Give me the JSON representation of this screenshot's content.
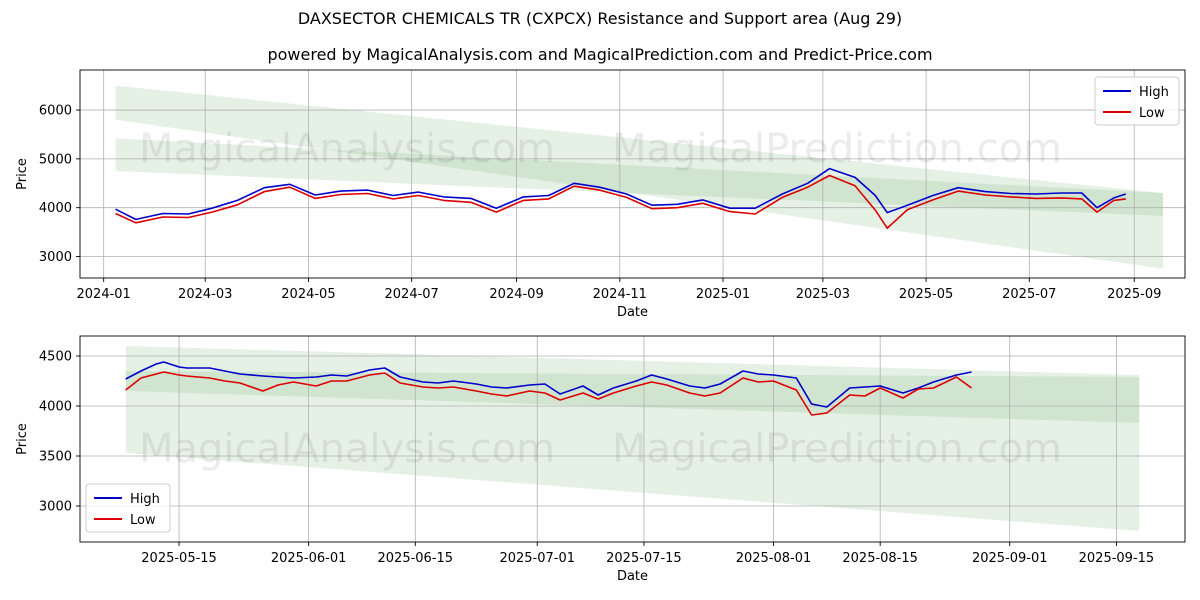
{
  "title": "DAXSECTOR CHEMICALS TR (CXPCX) Resistance and Support area (Aug 29)",
  "subtitle": "powered by MagicalAnalysis.com and MagicalPrediction.com and Predict-Price.com",
  "watermarks": [
    "MagicalAnalysis.com",
    "MagicalPrediction.com"
  ],
  "colors": {
    "high": "#0000cc",
    "low": "#dd0000",
    "band": "#2e8b2e",
    "grid": "#b0b0b0"
  },
  "chart_data": [
    {
      "type": "line",
      "name": "full-history",
      "xlabel": "Date",
      "ylabel": "Price",
      "xlim": [
        "2023-12-18",
        "2025-10-01"
      ],
      "ylim": [
        2560,
        6820
      ],
      "x_ticks": [
        "2024-01",
        "2024-03",
        "2024-05",
        "2024-07",
        "2024-09",
        "2024-11",
        "2025-01",
        "2025-03",
        "2025-05",
        "2025-07",
        "2025-09"
      ],
      "y_ticks": [
        3000,
        4000,
        5000,
        6000
      ],
      "legend": {
        "position": "top-right",
        "entries": [
          "High",
          "Low"
        ]
      },
      "grid": true,
      "bands": [
        {
          "x": [
            "2024-01-08",
            "2025-09-18"
          ],
          "upper": [
            6500,
            4300
          ],
          "lower": [
            5800,
            2750
          ]
        },
        {
          "x": [
            "2024-01-08",
            "2025-09-18"
          ],
          "upper": [
            5420,
            4300
          ],
          "lower": [
            4750,
            3830
          ]
        }
      ],
      "series": [
        {
          "name": "High",
          "x": [
            "2024-01-08",
            "2024-01-20",
            "2024-02-05",
            "2024-02-20",
            "2024-03-05",
            "2024-03-20",
            "2024-04-05",
            "2024-04-20",
            "2024-05-05",
            "2024-05-20",
            "2024-06-05",
            "2024-06-20",
            "2024-07-05",
            "2024-07-20",
            "2024-08-05",
            "2024-08-20",
            "2024-09-05",
            "2024-09-20",
            "2024-10-05",
            "2024-10-20",
            "2024-11-05",
            "2024-11-20",
            "2024-12-05",
            "2024-12-20",
            "2025-01-05",
            "2025-01-20",
            "2025-02-05",
            "2025-02-20",
            "2025-03-05",
            "2025-03-20",
            "2025-04-01",
            "2025-04-08",
            "2025-04-20",
            "2025-05-05",
            "2025-05-20",
            "2025-06-05",
            "2025-06-20",
            "2025-07-05",
            "2025-07-20",
            "2025-08-01",
            "2025-08-10",
            "2025-08-20",
            "2025-08-27"
          ],
          "values": [
            3970,
            3760,
            3880,
            3870,
            3990,
            4150,
            4410,
            4480,
            4260,
            4340,
            4360,
            4250,
            4320,
            4220,
            4190,
            3990,
            4220,
            4250,
            4500,
            4420,
            4280,
            4050,
            4070,
            4160,
            3990,
            3990,
            4280,
            4500,
            4800,
            4620,
            4250,
            3900,
            4050,
            4250,
            4410,
            4330,
            4290,
            4280,
            4300,
            4300,
            4000,
            4200,
            4280
          ]
        },
        {
          "name": "Low",
          "x": [
            "2024-01-08",
            "2024-01-20",
            "2024-02-05",
            "2024-02-20",
            "2024-03-05",
            "2024-03-20",
            "2024-04-05",
            "2024-04-20",
            "2024-05-05",
            "2024-05-20",
            "2024-06-05",
            "2024-06-20",
            "2024-07-05",
            "2024-07-20",
            "2024-08-05",
            "2024-08-20",
            "2024-09-05",
            "2024-09-20",
            "2024-10-05",
            "2024-10-20",
            "2024-11-05",
            "2024-11-20",
            "2024-12-05",
            "2024-12-20",
            "2025-01-05",
            "2025-01-20",
            "2025-02-05",
            "2025-02-20",
            "2025-03-05",
            "2025-03-20",
            "2025-04-01",
            "2025-04-08",
            "2025-04-20",
            "2025-05-05",
            "2025-05-20",
            "2025-06-05",
            "2025-06-20",
            "2025-07-05",
            "2025-07-20",
            "2025-08-01",
            "2025-08-10",
            "2025-08-20",
            "2025-08-27"
          ],
          "values": [
            3880,
            3690,
            3810,
            3800,
            3910,
            4060,
            4330,
            4420,
            4190,
            4270,
            4290,
            4180,
            4250,
            4150,
            4110,
            3910,
            4150,
            4180,
            4440,
            4360,
            4210,
            3980,
            4000,
            4090,
            3920,
            3870,
            4210,
            4420,
            4660,
            4450,
            3950,
            3580,
            3960,
            4160,
            4340,
            4260,
            4220,
            4190,
            4200,
            4180,
            3910,
            4150,
            4180
          ]
        }
      ]
    },
    {
      "type": "line",
      "name": "recent-zoom",
      "xlabel": "Date",
      "ylabel": "Price",
      "xlim": [
        "2025-05-02",
        "2025-09-24"
      ],
      "ylim": [
        2640,
        4700
      ],
      "x_ticks": [
        "2025-05-15",
        "2025-06-01",
        "2025-06-15",
        "2025-07-01",
        "2025-07-15",
        "2025-08-01",
        "2025-08-15",
        "2025-09-01",
        "2025-09-15"
      ],
      "y_ticks": [
        3000,
        3500,
        4000,
        4500
      ],
      "legend": {
        "position": "bottom-left",
        "entries": [
          "High",
          "Low"
        ]
      },
      "grid": true,
      "bands": [
        {
          "x": [
            "2025-05-08",
            "2025-09-18"
          ],
          "upper": [
            4600,
            4310
          ],
          "lower": [
            3530,
            2750
          ]
        },
        {
          "x": [
            "2025-05-08",
            "2025-09-18"
          ],
          "upper": [
            4350,
            4290
          ],
          "lower": [
            4150,
            3830
          ]
        }
      ],
      "series": [
        {
          "name": "High",
          "x": [
            "2025-05-08",
            "2025-05-10",
            "2025-05-12",
            "2025-05-13",
            "2025-05-15",
            "2025-05-16",
            "2025-05-19",
            "2025-05-21",
            "2025-05-23",
            "2025-05-26",
            "2025-05-28",
            "2025-05-30",
            "2025-06-02",
            "2025-06-04",
            "2025-06-06",
            "2025-06-09",
            "2025-06-11",
            "2025-06-13",
            "2025-06-16",
            "2025-06-18",
            "2025-06-20",
            "2025-06-23",
            "2025-06-25",
            "2025-06-27",
            "2025-06-30",
            "2025-07-02",
            "2025-07-04",
            "2025-07-07",
            "2025-07-09",
            "2025-07-11",
            "2025-07-14",
            "2025-07-16",
            "2025-07-18",
            "2025-07-21",
            "2025-07-23",
            "2025-07-25",
            "2025-07-28",
            "2025-07-30",
            "2025-08-01",
            "2025-08-04",
            "2025-08-06",
            "2025-08-08",
            "2025-08-11",
            "2025-08-13",
            "2025-08-15",
            "2025-08-18",
            "2025-08-20",
            "2025-08-22",
            "2025-08-25",
            "2025-08-27"
          ],
          "values": [
            4270,
            4350,
            4420,
            4440,
            4390,
            4380,
            4380,
            4350,
            4320,
            4300,
            4290,
            4280,
            4290,
            4310,
            4300,
            4360,
            4380,
            4290,
            4240,
            4230,
            4250,
            4220,
            4190,
            4180,
            4210,
            4220,
            4120,
            4200,
            4110,
            4180,
            4250,
            4310,
            4270,
            4200,
            4180,
            4220,
            4350,
            4320,
            4310,
            4280,
            4020,
            3990,
            4180,
            4190,
            4200,
            4130,
            4180,
            4240,
            4310,
            4340
          ]
        },
        {
          "name": "Low",
          "x": [
            "2025-05-08",
            "2025-05-10",
            "2025-05-12",
            "2025-05-13",
            "2025-05-15",
            "2025-05-16",
            "2025-05-19",
            "2025-05-21",
            "2025-05-23",
            "2025-05-26",
            "2025-05-28",
            "2025-05-30",
            "2025-06-02",
            "2025-06-04",
            "2025-06-06",
            "2025-06-09",
            "2025-06-11",
            "2025-06-13",
            "2025-06-16",
            "2025-06-18",
            "2025-06-20",
            "2025-06-23",
            "2025-06-25",
            "2025-06-27",
            "2025-06-30",
            "2025-07-02",
            "2025-07-04",
            "2025-07-07",
            "2025-07-09",
            "2025-07-11",
            "2025-07-14",
            "2025-07-16",
            "2025-07-18",
            "2025-07-21",
            "2025-07-23",
            "2025-07-25",
            "2025-07-28",
            "2025-07-30",
            "2025-08-01",
            "2025-08-04",
            "2025-08-06",
            "2025-08-08",
            "2025-08-11",
            "2025-08-13",
            "2025-08-15",
            "2025-08-18",
            "2025-08-20",
            "2025-08-22",
            "2025-08-25",
            "2025-08-27"
          ],
          "values": [
            4160,
            4280,
            4320,
            4340,
            4310,
            4300,
            4280,
            4250,
            4230,
            4150,
            4210,
            4240,
            4200,
            4250,
            4250,
            4310,
            4330,
            4230,
            4190,
            4180,
            4190,
            4150,
            4120,
            4100,
            4150,
            4130,
            4060,
            4130,
            4070,
            4130,
            4200,
            4240,
            4210,
            4130,
            4100,
            4130,
            4280,
            4240,
            4250,
            4160,
            3910,
            3930,
            4110,
            4100,
            4180,
            4080,
            4170,
            4180,
            4290,
            4180
          ]
        }
      ]
    }
  ]
}
